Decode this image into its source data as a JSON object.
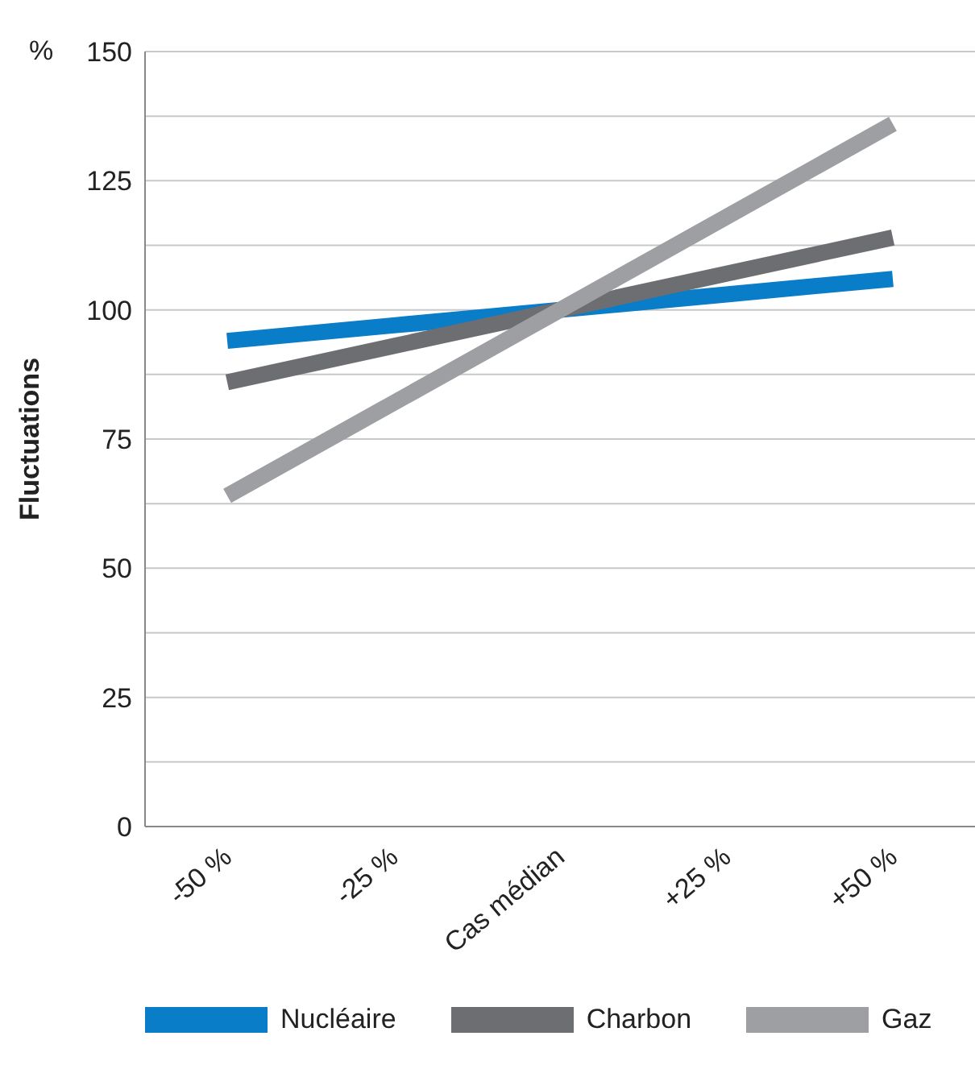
{
  "chart_data": {
    "type": "line",
    "ylabel": "Fluctuations",
    "annotations": [
      "%"
    ],
    "categories": [
      "-50 %",
      "-25 %",
      "Cas médian",
      "+25 %",
      "+50 %"
    ],
    "series": [
      {
        "name": "Nucléaire",
        "color": "#0a7dc8",
        "values": [
          94,
          97,
          100,
          103,
          106
        ]
      },
      {
        "name": "Charbon",
        "color": "#6d6e71",
        "values": [
          86,
          93,
          100,
          107,
          114
        ]
      },
      {
        "name": "Gaz",
        "color": "#9d9fa2",
        "values": [
          64,
          82,
          100,
          118,
          136
        ]
      }
    ],
    "ylim": [
      0,
      150
    ],
    "yticks": [
      0,
      {
        "value": 12.5,
        "label": null
      },
      25,
      {
        "value": 37.5,
        "label": null
      },
      50,
      {
        "value": 62.5,
        "label": null
      },
      75,
      {
        "value": 87.5,
        "label": null
      },
      100,
      {
        "value": 112.5,
        "label": null
      },
      125,
      {
        "value": 137.5,
        "label": null
      },
      150
    ],
    "grid": "y",
    "legend": "bottom",
    "marker": "none",
    "line_style": "solid"
  }
}
